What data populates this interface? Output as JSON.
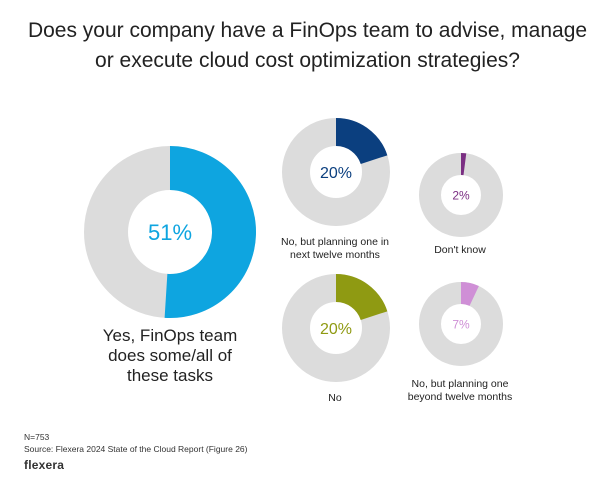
{
  "title_line1": "Does your company have a FinOps team to advise, manage",
  "title_line2": "or execute cloud cost optimization strategies?",
  "footer": {
    "n": "N=753",
    "source": "Source: Flexera 2024 State of the Cloud Report (Figure 26)",
    "logo": "flexera"
  },
  "chart_data": {
    "type": "pie",
    "style": "donut",
    "slices": [
      {
        "label_lines": [
          "Yes, FinOps team",
          "does some/all of",
          "these tasks"
        ],
        "value": 51,
        "value_label": "51%",
        "color": "#0ea5e0"
      },
      {
        "label_lines": [
          "No, but planning one in",
          "next twelve months"
        ],
        "value": 20,
        "value_label": "20%",
        "color": "#0b3f7f"
      },
      {
        "label_lines": [
          "Don't know"
        ],
        "value": 2,
        "value_label": "2%",
        "color": "#7b2f83"
      },
      {
        "label_lines": [
          "No"
        ],
        "value": 20,
        "value_label": "20%",
        "color": "#8f9a12"
      },
      {
        "label_lines": [
          "No, but planning one",
          "beyond twelve months"
        ],
        "value": 7,
        "value_label": "7%",
        "color": "#cf8fd6"
      }
    ],
    "remainder_color": "#dcdcdc"
  }
}
